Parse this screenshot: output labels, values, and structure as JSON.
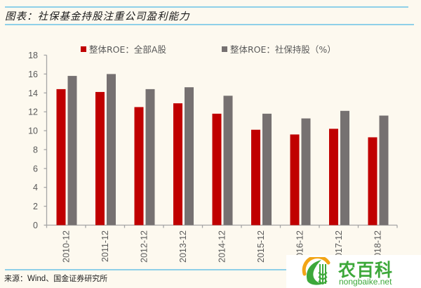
{
  "header": {
    "title": "图表：社保基金持股注重公司盈利能力"
  },
  "colors": {
    "series_a": "#C00000",
    "series_b": "#767171",
    "rule": "#8FD0E8",
    "axis": "#A6A6A6",
    "tick_text": "#595959",
    "background": "#FDF9EF",
    "watermark_green": "#3DA83A"
  },
  "legend": {
    "items": [
      {
        "label": "整体ROE：全部A股",
        "color": "#C00000"
      },
      {
        "label": "整体ROE：社保持股（%）",
        "color": "#767171"
      }
    ]
  },
  "footer": {
    "source_prefix": "来源：",
    "source_en": "Wind",
    "source_suffix": "、国金证券研究所"
  },
  "watermark": {
    "brand_cn": "农百科",
    "brand_en": "nongbaike.net"
  },
  "chart_data": {
    "type": "bar",
    "title": "图表：社保基金持股注重公司盈利能力",
    "xlabel": "",
    "ylabel": "",
    "categories": [
      "2010-12",
      "2011-12",
      "2012-12",
      "2013-12",
      "2014-12",
      "2015-12",
      "2016-12",
      "2017-12",
      "2018-12"
    ],
    "series": [
      {
        "name": "整体ROE：全部A股",
        "color": "#C00000",
        "values": [
          14.4,
          14.1,
          12.5,
          12.9,
          11.8,
          10.1,
          9.6,
          10.2,
          9.3
        ]
      },
      {
        "name": "整体ROE：社保持股（%）",
        "color": "#767171",
        "values": [
          15.8,
          16.0,
          14.4,
          14.6,
          13.7,
          11.8,
          11.3,
          12.1,
          11.6
        ]
      }
    ],
    "ylim": [
      0,
      18
    ],
    "yticks": [
      0,
      2,
      4,
      6,
      8,
      10,
      12,
      14,
      16,
      18
    ],
    "grid": false,
    "legend_position": "top",
    "xtick_rotation": -90
  }
}
